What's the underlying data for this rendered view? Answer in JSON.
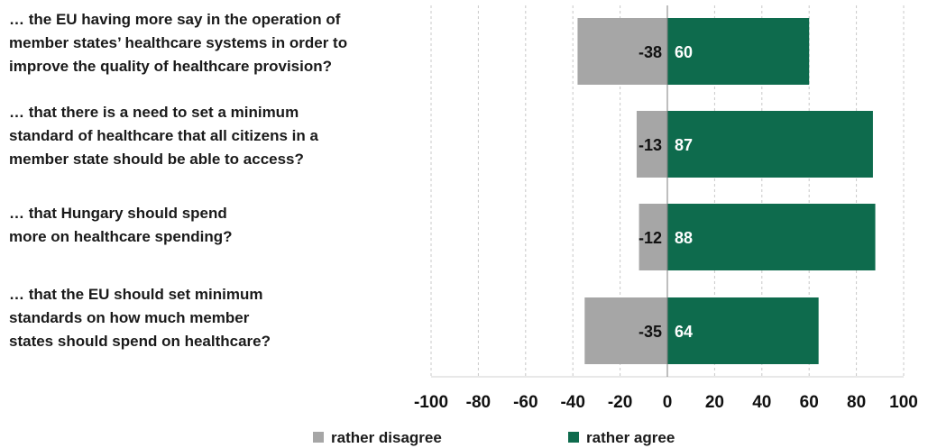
{
  "chart_data": {
    "type": "bar",
    "orientation": "horizontal",
    "stacked": "diverging",
    "categories": [
      "… the EU having more say in the operation of member states’ healthcare systems in order to improve the quality of healthcare provision?",
      "… that there is a need to set a minimum standard of healthcare that all citizens in a member state should be able to access?",
      "… that Hungary should spend more on healthcare spending?",
      "… that the EU should set minimum standards on how much member states should spend on healthcare?"
    ],
    "category_lines": [
      [
        "… the EU having more say in the operation of",
        "member states’ healthcare systems in order to",
        "improve the quality of healthcare provision?"
      ],
      [
        "… that there is a need to set a minimum",
        "standard of healthcare that all citizens in a",
        "member state should be able to access?"
      ],
      [
        "… that Hungary should spend",
        "more on healthcare spending?"
      ],
      [
        "… that the EU should set minimum",
        "standards on how much member",
        "states should spend on healthcare?"
      ]
    ],
    "series": [
      {
        "name": "rather disagree",
        "values": [
          -38,
          -13,
          -12,
          -35
        ],
        "color": "#a6a6a6",
        "label_color": "#111111"
      },
      {
        "name": "rather agree",
        "values": [
          60,
          87,
          88,
          64
        ],
        "color": "#0e6b4d",
        "label_color": "#ffffff"
      }
    ],
    "xlim": [
      -100,
      100
    ],
    "xticks": [
      "-100",
      "-80",
      "-60",
      "-40",
      "-20",
      "0",
      "20",
      "40",
      "60",
      "80",
      "100"
    ],
    "xtick_values": [
      -100,
      -80,
      -60,
      -40,
      -20,
      0,
      20,
      40,
      60,
      80,
      100
    ],
    "grid": "vertical dashed",
    "legend_position": "bottom"
  }
}
